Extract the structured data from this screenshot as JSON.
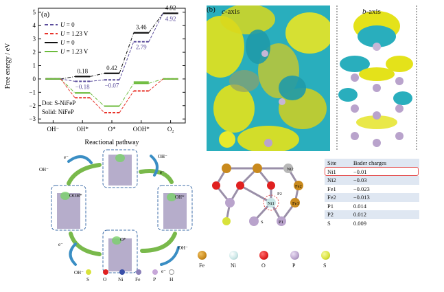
{
  "panel_a": {
    "label": "(a)",
    "ylabel": "Free energy / eV",
    "xlabel": "Reactional pathway",
    "legend_prefix": "U",
    "legend_u0": " = 0",
    "legend_u123": " = 1.23 V",
    "dot_label": "Dot: S-NiFeP",
    "solid_label": "Solid: NiFeP",
    "o2_base": "O",
    "o2_sub": "2"
  },
  "panel_b": {
    "label": "(b)",
    "c_axis_italic": "c",
    "c_axis_suffix": "-axis",
    "b_axis_italic": "b",
    "b_axis_suffix": "-axis",
    "atom_labels": [
      "Ni2",
      "Fe2",
      "P2",
      "Fe1",
      "Ni1",
      "S",
      "P1"
    ]
  },
  "bader_table": {
    "headers": [
      "Site",
      "Bader charges"
    ],
    "rows": [
      {
        "site": "Ni1",
        "charge": "−0.01"
      },
      {
        "site": "Ni2",
        "charge": "−0.03"
      },
      {
        "site": "Fe1",
        "charge": "−0.023"
      },
      {
        "site": "Fe2",
        "charge": "−0.013"
      },
      {
        "site": "P1",
        "charge": "0.014"
      },
      {
        "site": "P2",
        "charge": "0.012"
      },
      {
        "site": "S",
        "charge": "0.009"
      }
    ]
  },
  "element_legend_right": [
    "Fe",
    "Ni",
    "O",
    "P",
    "S"
  ],
  "element_legend_bottom": [
    "S",
    "O",
    "Ni",
    "Fe",
    "P",
    "H"
  ],
  "cycle": {
    "e_label": "e⁻",
    "oh_label": "OH⁻",
    "states": [
      "OOH*",
      "OH*",
      "O*"
    ]
  },
  "colors": {
    "black": "#111111",
    "red_dash": "#e8332a",
    "purple_dash": "#5b4d9c",
    "green_solid": "#6cbb3c",
    "fe": "#c98a1d",
    "ni": "#c9e6e6",
    "o": "#e02020",
    "p": "#b9a3cc",
    "s": "#d8e23a",
    "h": "#ffffff",
    "cyan_density": "#2fb7c2",
    "yellow_density": "#e4e21a"
  },
  "chart_data": {
    "type": "line",
    "xlabel": "Reactional pathway",
    "ylabel": "Free energy / eV",
    "categories": [
      "OH⁻",
      "OH*",
      "O*",
      "OOH*",
      "O₂"
    ],
    "ylim": [
      -3.3,
      5.3
    ],
    "yticks": [
      -3,
      -2,
      -1,
      0,
      1,
      2,
      3,
      4,
      5
    ],
    "series": [
      {
        "marker": "dash-dot",
        "color": "#111111",
        "values": [
          0,
          0.18,
          0.42,
          3.46,
          4.92
        ]
      },
      {
        "marker": "dash-dot",
        "color": "#6cbb3c",
        "values": [
          0,
          -1.05,
          -2.04,
          -0.33,
          0
        ]
      },
      {
        "marker": "dashed",
        "color": "#5b4d9c",
        "values": [
          0,
          -0.18,
          -0.07,
          2.79,
          4.92
        ]
      },
      {
        "marker": "dashed",
        "color": "#e8332a",
        "values": [
          0,
          -1.41,
          -2.53,
          -0.9,
          0
        ]
      },
      {
        "marker": "solid",
        "color": "#111111",
        "values": [
          0,
          0.18,
          0.42,
          3.46,
          4.92
        ]
      },
      {
        "marker": "solid",
        "color": "#6cbb3c",
        "values": [
          0,
          -1.05,
          -2.04,
          -0.23,
          0
        ]
      }
    ],
    "annotations_black": [
      "0.18",
      "0.42",
      "3.46",
      "4.92"
    ],
    "annotations_purple": [
      "−0.18",
      "−0.07",
      "2.79",
      "4.92"
    ]
  }
}
